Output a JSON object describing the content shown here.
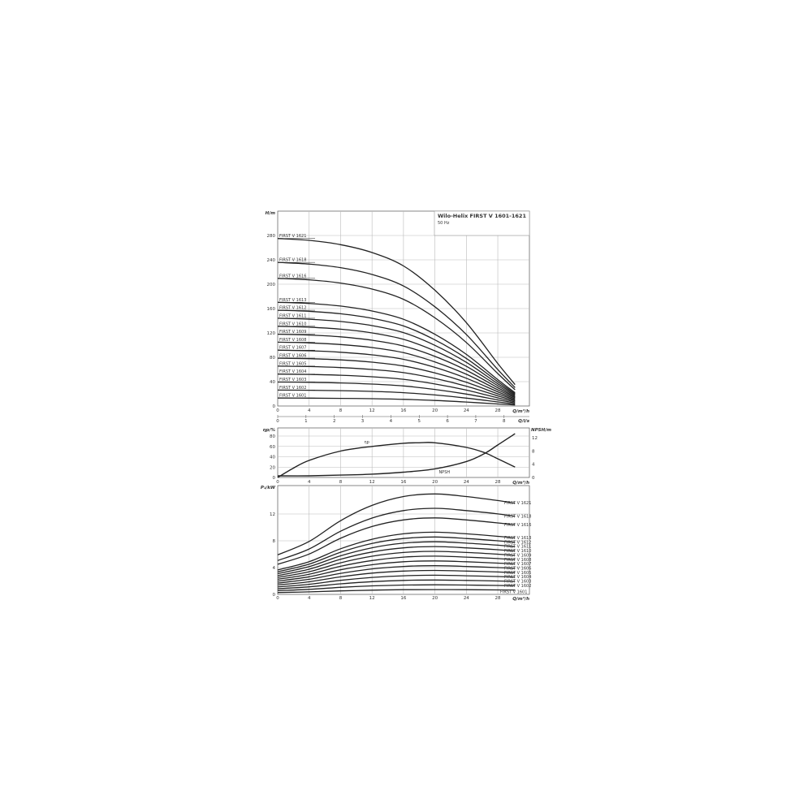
{
  "title": "Wilo-Helix FIRST V 1601-1621",
  "subtitle": "50 Hz",
  "chart_data": [
    {
      "type": "line",
      "name": "head",
      "ylabel": "H/m",
      "xlabel": "Q/m³/h",
      "x2label": "Q/l/s",
      "xlim": [
        0,
        32
      ],
      "ylim": [
        0,
        320
      ],
      "xticks": [
        0,
        4,
        8,
        12,
        16,
        20,
        24,
        28
      ],
      "yticks": [
        0,
        40,
        80,
        120,
        160,
        200,
        240,
        280
      ],
      "x2ticks": [
        0,
        1,
        2,
        3,
        4,
        5,
        6,
        7,
        8
      ],
      "grid": true,
      "x": [
        0,
        4,
        8,
        12,
        16,
        20,
        24,
        28,
        30.2
      ],
      "series": [
        {
          "name": "FIRST V 1601",
          "values": [
            13.1,
            13.0,
            12.6,
            12.0,
            11.0,
            9.1,
            6.5,
            3.3,
            1.7
          ]
        },
        {
          "name": "FIRST V 1602",
          "values": [
            26.2,
            25.9,
            25.2,
            24.0,
            21.9,
            18.1,
            13.0,
            6.7,
            3.3
          ]
        },
        {
          "name": "FIRST V 1603",
          "values": [
            39.3,
            38.9,
            37.9,
            36.0,
            32.9,
            27.2,
            19.6,
            10.0,
            5.0
          ]
        },
        {
          "name": "FIRST V 1604",
          "values": [
            52.4,
            51.8,
            50.5,
            48.0,
            43.8,
            36.2,
            26.1,
            13.3,
            6.7
          ]
        },
        {
          "name": "FIRST V 1605",
          "values": [
            65.5,
            64.8,
            63.1,
            60.0,
            54.8,
            45.3,
            32.6,
            16.7,
            8.4
          ]
        },
        {
          "name": "FIRST V 1606",
          "values": [
            78.6,
            77.7,
            75.7,
            72.0,
            65.7,
            54.3,
            39.1,
            20.0,
            10.0
          ]
        },
        {
          "name": "FIRST V 1607",
          "values": [
            91.7,
            90.7,
            88.3,
            84.0,
            76.7,
            63.4,
            45.6,
            23.3,
            11.7
          ]
        },
        {
          "name": "FIRST V 1608",
          "values": [
            104.8,
            103.6,
            101.0,
            96.0,
            87.6,
            72.4,
            52.2,
            26.6,
            13.4
          ]
        },
        {
          "name": "FIRST V 1609",
          "values": [
            117.9,
            116.6,
            113.6,
            108.0,
            98.6,
            81.5,
            58.7,
            30.0,
            15.0
          ]
        },
        {
          "name": "FIRST V 1610",
          "values": [
            131.0,
            129.5,
            126.2,
            120.0,
            109.5,
            90.5,
            65.2,
            33.3,
            16.7
          ]
        },
        {
          "name": "FIRST V 1611",
          "values": [
            144.1,
            142.5,
            138.8,
            132.0,
            120.5,
            99.6,
            71.7,
            36.6,
            18.4
          ]
        },
        {
          "name": "FIRST V 1612",
          "values": [
            157.2,
            155.4,
            151.4,
            144.0,
            131.4,
            108.6,
            78.2,
            40.0,
            20.0
          ]
        },
        {
          "name": "FIRST V 1613",
          "values": [
            170.3,
            168.4,
            164.1,
            156.0,
            142.4,
            117.7,
            84.8,
            43.3,
            21.7
          ]
        },
        {
          "name": "FIRST V 1616",
          "values": [
            209.6,
            207.2,
            201.9,
            192.0,
            175.2,
            144.8,
            104.3,
            53.3,
            26.7
          ]
        },
        {
          "name": "FIRST V 1618",
          "values": [
            235.8,
            233.1,
            227.2,
            216.0,
            197.1,
            162.9,
            117.4,
            59.9,
            30.1
          ]
        },
        {
          "name": "FIRST V 1621",
          "values": [
            275.1,
            272.0,
            265.0,
            252.0,
            230.0,
            190.1,
            136.9,
            69.9,
            35.1
          ]
        }
      ]
    },
    {
      "type": "line",
      "name": "efficiency-npsh",
      "ylabel": "ηp/%",
      "y2label": "NPSH/m",
      "xlabel": "Q/m³/h",
      "xlim": [
        0,
        32
      ],
      "ylim": [
        0,
        90
      ],
      "y2lim": [
        0,
        13.5
      ],
      "xticks": [
        0,
        4,
        8,
        12,
        16,
        20,
        24,
        28
      ],
      "yticks": [
        0,
        20,
        40,
        60,
        80
      ],
      "y2ticks": [
        0,
        4,
        8,
        12
      ],
      "grid": true,
      "series": [
        {
          "name": "ηp",
          "axis": "left",
          "x": [
            0,
            2,
            4,
            8,
            12,
            16,
            18,
            20,
            24,
            26.3,
            28,
            30.2
          ],
          "values": [
            0,
            18,
            33,
            51,
            60,
            66,
            67,
            67,
            58,
            48,
            36,
            20
          ]
        },
        {
          "name": "NPSH",
          "axis": "right",
          "x": [
            0,
            4,
            8,
            12,
            16,
            20,
            24,
            26.3,
            28,
            30.2
          ],
          "values": [
            0.5,
            0.5,
            0.7,
            1.0,
            1.6,
            2.6,
            4.8,
            7.2,
            9.8,
            13.2
          ]
        }
      ]
    },
    {
      "type": "line",
      "name": "power",
      "ylabel": "P₁/kW",
      "xlabel": "Q/m³/h",
      "xlim": [
        0,
        32
      ],
      "ylim": [
        0,
        16.2
      ],
      "xticks": [
        0,
        4,
        8,
        12,
        16,
        20,
        24,
        28
      ],
      "yticks": [
        0,
        4,
        8,
        12
      ],
      "grid": true,
      "x": [
        0,
        4,
        8,
        12,
        16,
        20,
        24,
        28,
        30.2
      ],
      "series": [
        {
          "name": "FIRST V 1601",
          "values": [
            0.28,
            0.38,
            0.52,
            0.63,
            0.7,
            0.71,
            0.7,
            0.67,
            0.65
          ]
        },
        {
          "name": "FIRST V 1602",
          "values": [
            0.56,
            0.75,
            1.05,
            1.27,
            1.39,
            1.43,
            1.39,
            1.33,
            1.3
          ]
        },
        {
          "name": "FIRST V 1603",
          "values": [
            0.84,
            1.13,
            1.57,
            1.9,
            2.09,
            2.14,
            2.09,
            2.0,
            1.94
          ]
        },
        {
          "name": "FIRST V 1604",
          "values": [
            1.12,
            1.5,
            2.1,
            2.53,
            2.78,
            2.86,
            2.78,
            2.67,
            2.59
          ]
        },
        {
          "name": "FIRST V 1605",
          "values": [
            1.41,
            1.88,
            2.62,
            3.17,
            3.48,
            3.57,
            3.48,
            3.34,
            3.24
          ]
        },
        {
          "name": "FIRST V 1606",
          "values": [
            1.69,
            2.26,
            3.14,
            3.8,
            4.17,
            4.28,
            4.17,
            4.0,
            3.89
          ]
        },
        {
          "name": "FIRST V 1607",
          "values": [
            1.97,
            2.63,
            3.67,
            4.43,
            4.87,
            5.0,
            4.87,
            4.67,
            4.54
          ]
        },
        {
          "name": "FIRST V 1608",
          "values": [
            2.25,
            3.01,
            4.19,
            5.06,
            5.56,
            5.71,
            5.56,
            5.34,
            5.18
          ]
        },
        {
          "name": "FIRST V 1609",
          "values": [
            2.53,
            3.38,
            4.72,
            5.7,
            6.26,
            6.43,
            6.26,
            6.0,
            5.83
          ]
        },
        {
          "name": "FIRST V 1610",
          "values": [
            2.81,
            3.76,
            5.24,
            6.33,
            6.95,
            7.14,
            6.95,
            6.67,
            6.48
          ]
        },
        {
          "name": "FIRST V 1611",
          "values": [
            3.09,
            4.14,
            5.76,
            6.96,
            7.65,
            7.85,
            7.65,
            7.34,
            7.13
          ]
        },
        {
          "name": "FIRST V 1612",
          "values": [
            3.37,
            4.51,
            6.29,
            7.6,
            8.34,
            8.57,
            8.34,
            8.0,
            7.78
          ]
        },
        {
          "name": "FIRST V 1613",
          "values": [
            3.65,
            4.89,
            6.81,
            8.23,
            9.04,
            9.28,
            9.04,
            8.67,
            8.42
          ]
        },
        {
          "name": "FIRST V 1616",
          "values": [
            4.5,
            6.02,
            8.38,
            10.13,
            11.12,
            11.42,
            11.12,
            10.67,
            10.37
          ]
        },
        {
          "name": "FIRST V 1618",
          "values": [
            5.06,
            6.77,
            9.43,
            11.39,
            12.51,
            12.85,
            12.51,
            12.01,
            11.66
          ]
        },
        {
          "name": "FIRST V 1621",
          "values": [
            5.9,
            7.9,
            11.0,
            13.29,
            14.6,
            14.99,
            14.6,
            14.01,
            13.61
          ]
        }
      ]
    }
  ]
}
